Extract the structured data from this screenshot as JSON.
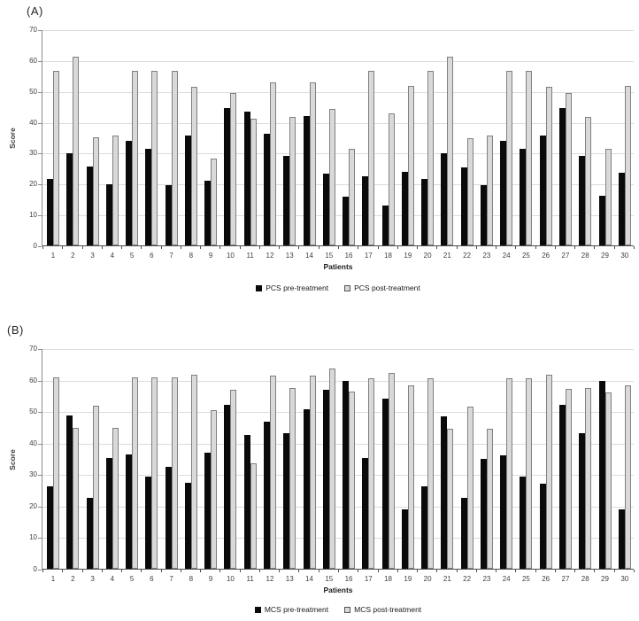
{
  "figure": {
    "background": "#ffffff",
    "pre_bar_color": "#0a0a0a",
    "post_bar_fill": "#d9d9d9",
    "post_bar_border": "#808080",
    "gridline_color": "#dcdcdc"
  },
  "chart_data": [
    {
      "type": "bar",
      "panel_label": "(A)",
      "title": "",
      "xlabel": "Patients",
      "ylabel": "Score",
      "ylim": [
        0,
        70
      ],
      "ytick_step": 10,
      "grid": true,
      "legend_position": "bottom-center",
      "categories": [
        1,
        2,
        3,
        4,
        5,
        6,
        7,
        8,
        9,
        10,
        11,
        12,
        13,
        14,
        15,
        16,
        17,
        18,
        19,
        20,
        21,
        22,
        23,
        24,
        25,
        26,
        27,
        28,
        29,
        30
      ],
      "series": [
        {
          "name": "PCS pre-treatment",
          "color": "#0a0a0a",
          "values": [
            21.5,
            29.9,
            25.5,
            19.7,
            34.0,
            31.4,
            19.5,
            35.5,
            21.0,
            44.5,
            43.3,
            36.1,
            29.0,
            41.9,
            23.3,
            15.8,
            22.4,
            12.8,
            23.8,
            21.5,
            29.8,
            25.3,
            19.6,
            33.9,
            31.3,
            35.6,
            44.5,
            29.0,
            16.1,
            23.6
          ]
        },
        {
          "name": "PCS post-treatment",
          "color": "#d9d9d9",
          "border_color": "#808080",
          "values": [
            56.5,
            61.2,
            34.9,
            35.6,
            56.5,
            56.5,
            56.5,
            51.5,
            28.0,
            49.3,
            41.0,
            52.8,
            41.6,
            52.8,
            44.2,
            31.3,
            56.5,
            42.7,
            51.6,
            56.5,
            61.2,
            34.7,
            35.6,
            56.5,
            56.5,
            51.5,
            49.3,
            41.6,
            31.3,
            51.6
          ]
        }
      ]
    },
    {
      "type": "bar",
      "panel_label": "(B)",
      "title": "",
      "xlabel": "Patients",
      "ylabel": "Score",
      "ylim": [
        0,
        70
      ],
      "ytick_step": 10,
      "grid": true,
      "legend_position": "bottom-center",
      "categories": [
        1,
        2,
        3,
        4,
        5,
        6,
        7,
        8,
        9,
        10,
        11,
        12,
        13,
        14,
        15,
        16,
        17,
        18,
        19,
        20,
        21,
        22,
        23,
        24,
        25,
        26,
        27,
        28,
        29,
        30
      ],
      "series": [
        {
          "name": "MCS pre-treatment",
          "color": "#0a0a0a",
          "values": [
            26.2,
            48.6,
            22.4,
            35.2,
            36.2,
            29.2,
            32.3,
            27.2,
            36.8,
            52.0,
            42.5,
            46.7,
            43.0,
            50.7,
            56.8,
            59.6,
            35.2,
            54.1,
            18.7,
            26.1,
            48.3,
            22.5,
            34.9,
            36.0,
            29.2,
            27.0,
            52.1,
            43.1,
            59.6,
            18.8
          ]
        },
        {
          "name": "MCS post-treatment",
          "color": "#d9d9d9",
          "border_color": "#808080",
          "values": [
            60.7,
            44.6,
            51.7,
            44.6,
            60.7,
            60.7,
            60.7,
            61.5,
            50.3,
            56.8,
            33.5,
            61.3,
            57.4,
            61.4,
            63.4,
            56.1,
            60.5,
            62.1,
            58.1,
            60.4,
            44.4,
            51.5,
            44.4,
            60.4,
            60.4,
            61.6,
            57.1,
            57.4,
            56.0,
            58.2
          ]
        }
      ]
    }
  ]
}
